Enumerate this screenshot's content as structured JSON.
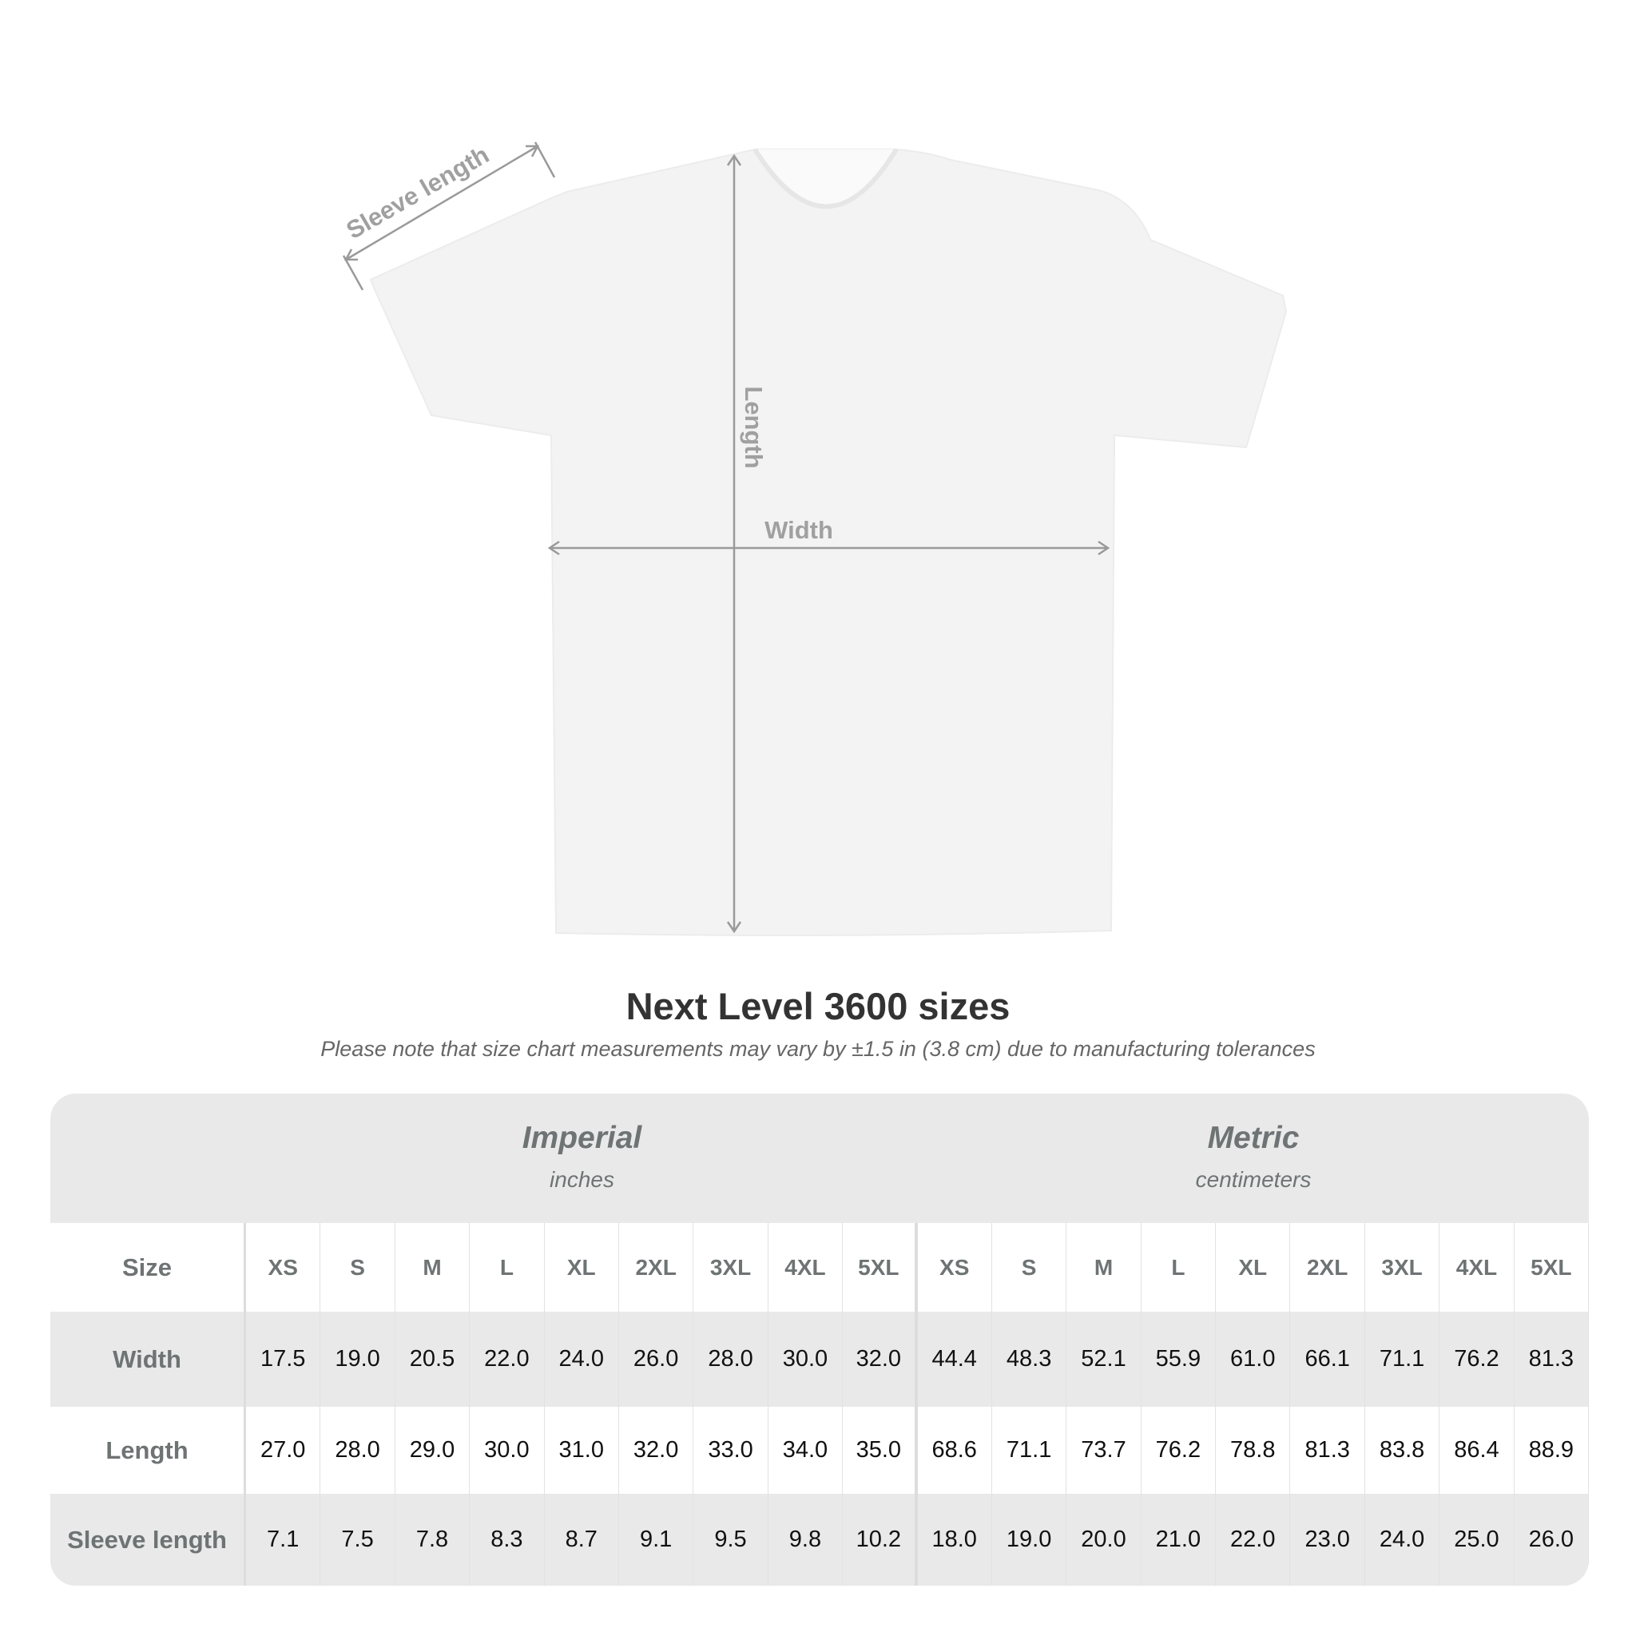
{
  "diagram": {
    "sleeve_label": "Sleeve length",
    "length_label": "Length",
    "width_label": "Width",
    "shirt_color": "#f3f3f3",
    "arrow_color": "#9a9a9a"
  },
  "title": "Next Level 3600 sizes",
  "note": "Please note that size chart measurements may vary by ±1.5 in (3.8 cm) due to manufacturing tolerances",
  "table": {
    "imperial": {
      "label": "Imperial",
      "unit": "inches"
    },
    "metric": {
      "label": "Metric",
      "unit": "centimeters"
    },
    "size_label": "Size",
    "sizes": [
      "XS",
      "S",
      "M",
      "L",
      "XL",
      "2XL",
      "3XL",
      "4XL",
      "5XL"
    ],
    "rows": [
      {
        "label": "Width",
        "imperial": [
          "17.5",
          "19.0",
          "20.5",
          "22.0",
          "24.0",
          "26.0",
          "28.0",
          "30.0",
          "32.0"
        ],
        "metric": [
          "44.4",
          "48.3",
          "52.1",
          "55.9",
          "61.0",
          "66.1",
          "71.1",
          "76.2",
          "81.3"
        ]
      },
      {
        "label": "Length",
        "imperial": [
          "27.0",
          "28.0",
          "29.0",
          "30.0",
          "31.0",
          "32.0",
          "33.0",
          "34.0",
          "35.0"
        ],
        "metric": [
          "68.6",
          "71.1",
          "73.7",
          "76.2",
          "78.8",
          "81.3",
          "83.8",
          "86.4",
          "88.9"
        ]
      },
      {
        "label": "Sleeve length",
        "imperial": [
          "7.1",
          "7.5",
          "7.8",
          "8.3",
          "8.7",
          "9.1",
          "9.5",
          "9.8",
          "10.2"
        ],
        "metric": [
          "18.0",
          "19.0",
          "20.0",
          "21.0",
          "22.0",
          "23.0",
          "24.0",
          "25.0",
          "26.0"
        ]
      }
    ]
  }
}
